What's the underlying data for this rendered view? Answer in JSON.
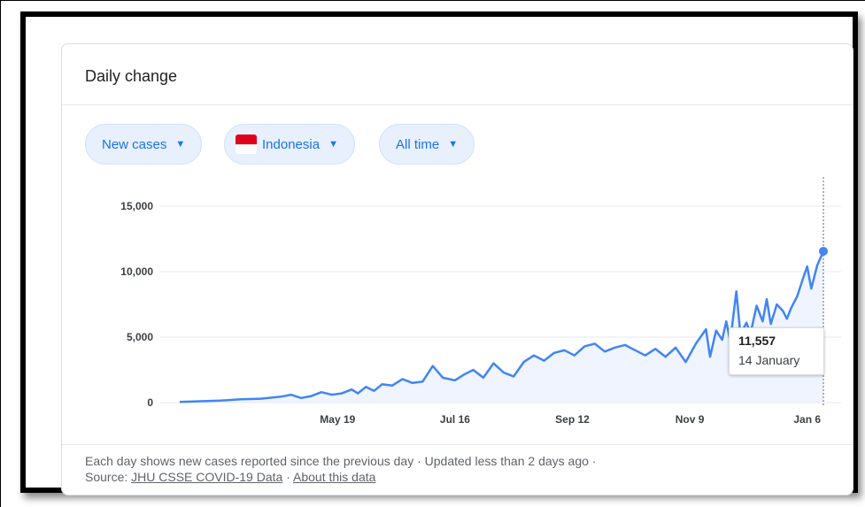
{
  "card": {
    "title": "Daily change"
  },
  "filters": {
    "metric": "New cases",
    "country": "Indonesia",
    "range": "All time"
  },
  "tooltip": {
    "value": "11,557",
    "date": "14 January"
  },
  "footer": {
    "line1": "Each day shows new cases reported since the previous day · Updated less than 2 days ago  ·",
    "source_prefix": "Source:",
    "source_link": "JHU CSSE COVID-19 Data",
    "separator": "·",
    "about_link": "About this data"
  },
  "colors": {
    "line": "#4285f4",
    "area": "#e8f0fe",
    "chip_text": "#1a73e8"
  },
  "chart_data": {
    "type": "line",
    "title": "",
    "xlabel": "",
    "ylabel": "",
    "ylim": [
      0,
      15000
    ],
    "y_ticks": [
      0,
      5000,
      10000,
      15000
    ],
    "y_tick_labels": [
      "0",
      "5,000",
      "10,000",
      "15,000"
    ],
    "x_ticks": [
      "May 19",
      "Jul 16",
      "Sep 12",
      "Nov 9",
      "Jan 6"
    ],
    "x_tick_days": [
      78,
      136,
      194,
      252,
      310
    ],
    "grid": true,
    "highlight": {
      "day": 318,
      "value": 11557,
      "label": "14 January"
    },
    "series": [
      {
        "x": [
          0,
          10,
          20,
          30,
          40,
          50,
          55,
          60,
          65,
          70,
          75,
          80,
          85,
          88,
          92,
          96,
          100,
          105,
          110,
          115,
          120,
          125,
          130,
          133,
          136,
          140,
          145,
          150,
          155,
          160,
          165,
          170,
          175,
          180,
          185,
          190,
          195,
          200,
          205,
          210,
          215,
          220,
          225,
          230,
          235,
          240,
          245,
          250,
          255,
          260,
          262,
          265,
          268,
          270,
          272,
          275,
          277,
          280,
          282,
          285,
          288,
          290,
          292,
          295,
          298,
          300,
          302,
          305,
          308,
          310,
          312,
          315,
          318
        ],
        "values": [
          50,
          100,
          150,
          250,
          300,
          450,
          600,
          350,
          500,
          800,
          600,
          700,
          1000,
          700,
          1200,
          900,
          1400,
          1300,
          1800,
          1500,
          1600,
          2800,
          1900,
          1800,
          1700,
          2100,
          2500,
          1900,
          3000,
          2300,
          2000,
          3100,
          3600,
          3200,
          3800,
          4000,
          3600,
          4300,
          4500,
          3900,
          4200,
          4400,
          4000,
          3600,
          4100,
          3500,
          4200,
          3100,
          4500,
          5600,
          3500,
          5500,
          4800,
          6200,
          4700,
          8500,
          5200,
          6100,
          5300,
          7400,
          6200,
          7900,
          6000,
          7500,
          7000,
          6400,
          7200,
          8100,
          9500,
          10400,
          8700,
          10500,
          11557
        ]
      }
    ]
  }
}
